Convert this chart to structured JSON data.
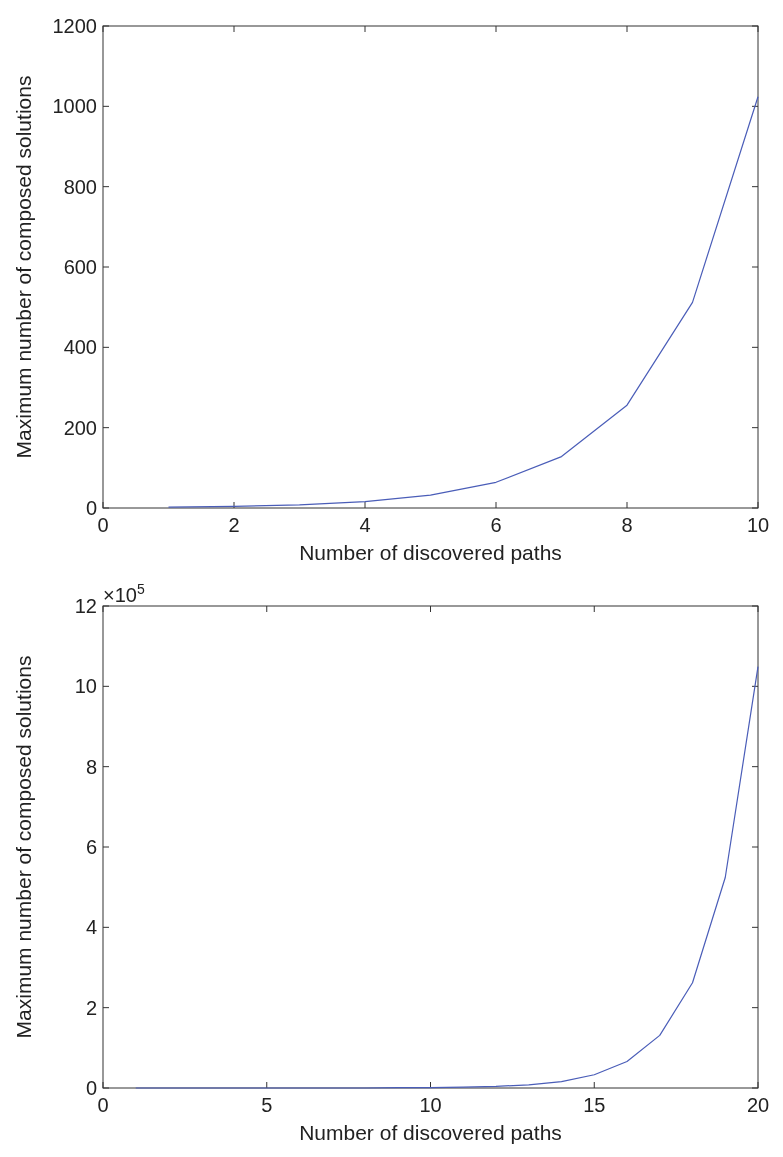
{
  "chart_data": [
    {
      "type": "line",
      "xlabel": "Number of discovered paths",
      "ylabel": "Maximum number of composed solutions",
      "x": [
        1,
        2,
        3,
        4,
        5,
        6,
        7,
        8,
        9,
        10
      ],
      "series": [
        {
          "color": "#4a5db8",
          "values": [
            2,
            4,
            8,
            16,
            32,
            64,
            128,
            256,
            512,
            1024
          ]
        }
      ],
      "xlim": [
        0,
        10
      ],
      "ylim": [
        0,
        1200
      ],
      "xticks": [
        0,
        2,
        4,
        6,
        8,
        10
      ],
      "yticks": [
        0,
        200,
        400,
        600,
        800,
        1000,
        1200
      ]
    },
    {
      "type": "line",
      "xlabel": "Number of discovered paths",
      "ylabel": "Maximum number of composed solutions",
      "annotations": [
        "×10$^{5}$"
      ],
      "x": [
        1,
        2,
        3,
        4,
        5,
        6,
        7,
        8,
        9,
        10,
        11,
        12,
        13,
        14,
        15,
        16,
        17,
        18,
        19,
        20
      ],
      "series": [
        {
          "color": "#4a5db8",
          "values": [
            0,
            0,
            0,
            0,
            0,
            0,
            0,
            0,
            0.01,
            0.01,
            0.02,
            0.04,
            0.08,
            0.16,
            0.33,
            0.66,
            1.31,
            2.62,
            5.24,
            10.49
          ]
        }
      ],
      "xlim": [
        0,
        20
      ],
      "ylim": [
        0,
        12
      ],
      "xticks": [
        0,
        5,
        10,
        15,
        20
      ],
      "yticks": [
        0,
        2,
        4,
        6,
        8,
        10,
        12
      ]
    }
  ]
}
